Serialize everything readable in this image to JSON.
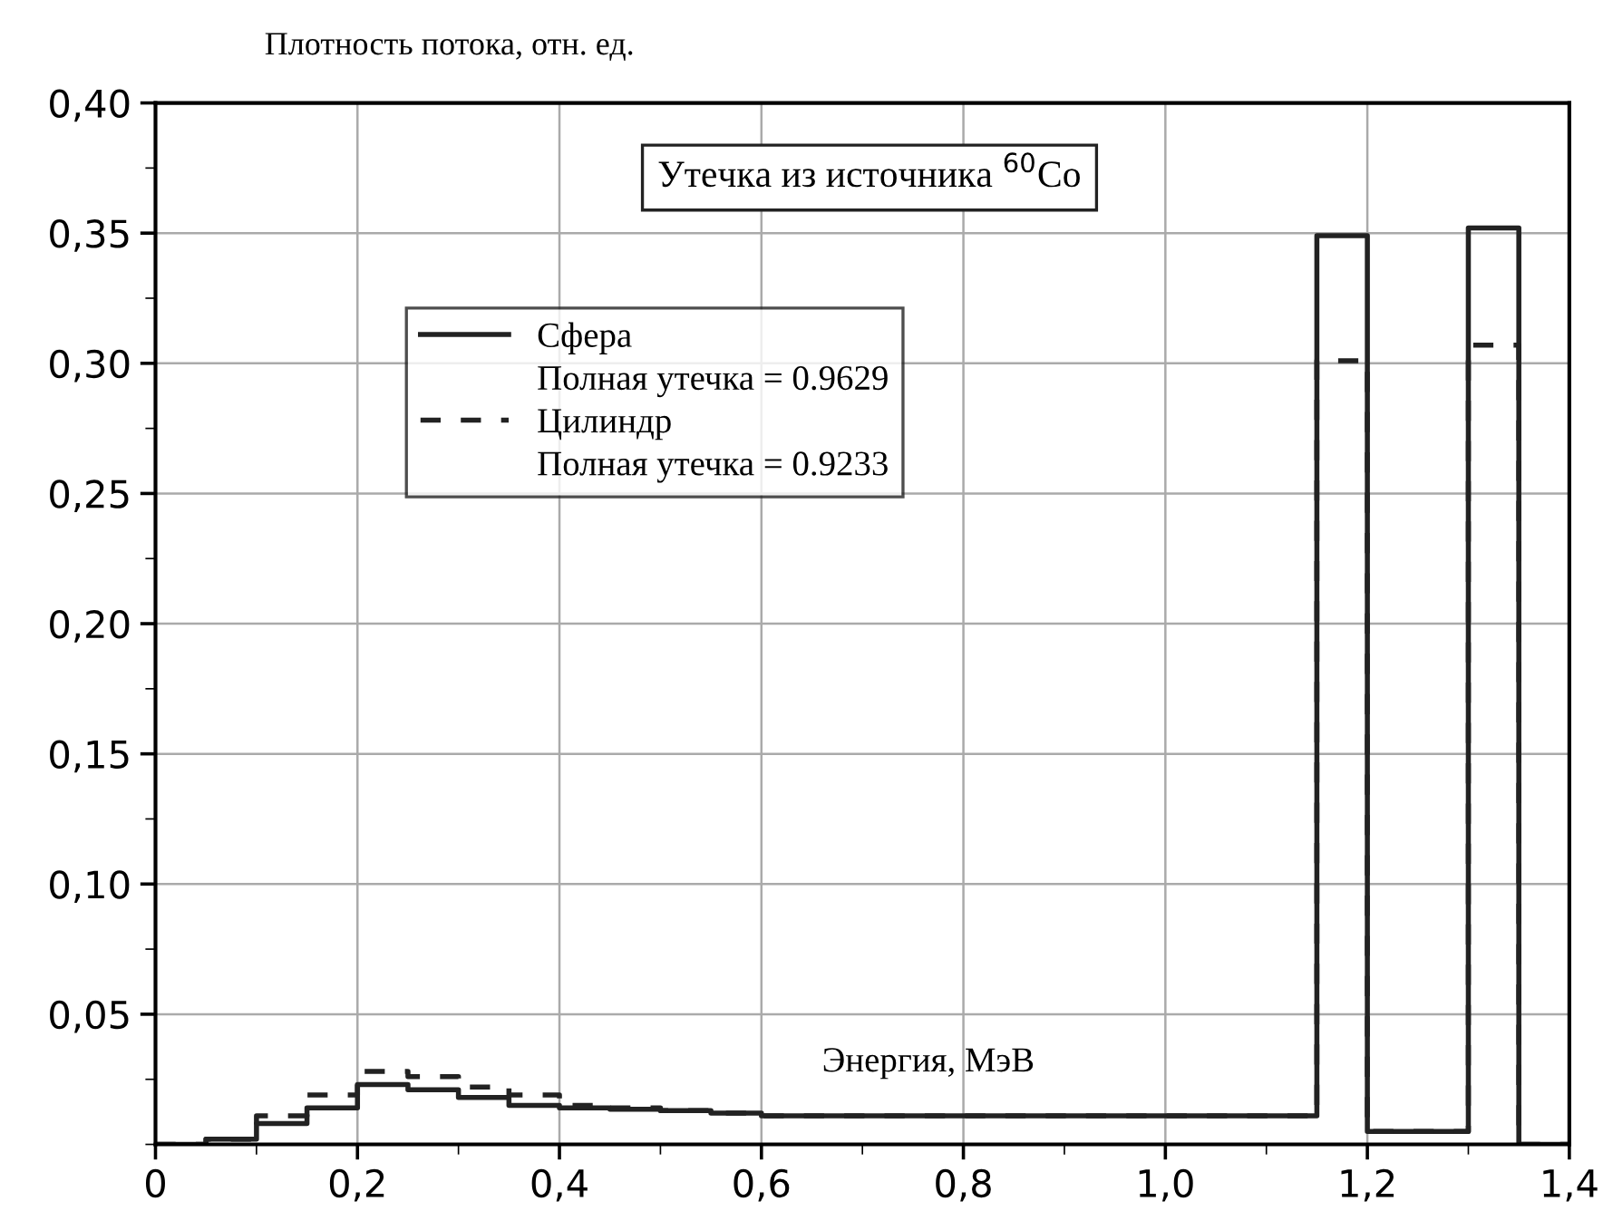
{
  "chart_data": {
    "type": "step",
    "ylabel": "Плотность потока, отн. ед.",
    "xlabel": "Энергия, МэВ",
    "annotations": [
      "Утечка из источника $^{60}$Co",
      "Полная утечка = 0.9629",
      "Полная утечка = 0.9233"
    ],
    "x": [
      0,
      0.05,
      0.1,
      0.15,
      0.2,
      0.25,
      0.3,
      0.35,
      0.4,
      0.45,
      0.5,
      0.55,
      0.6,
      0.65,
      0.7,
      0.75,
      0.8,
      0.85,
      0.9,
      0.95,
      1.0,
      1.05,
      1.1,
      1.15,
      1.2,
      1.25,
      1.3,
      1.35,
      1.4
    ],
    "series": [
      {
        "name": "Сфера",
        "color": "#222222",
        "line_style": "solid",
        "values": [
          0,
          0.002,
          0.008,
          0.014,
          0.023,
          0.021,
          0.018,
          0.015,
          0.014,
          0.0135,
          0.013,
          0.012,
          0.011,
          0.011,
          0.011,
          0.011,
          0.011,
          0.011,
          0.011,
          0.011,
          0.011,
          0.011,
          0.011,
          0.349,
          0.005,
          0.005,
          0.352,
          0,
          0
        ]
      },
      {
        "name": "Цилиндр",
        "color": "#222222",
        "line_style": "dashed",
        "values": [
          0,
          0.002,
          0.011,
          0.019,
          0.028,
          0.026,
          0.022,
          0.019,
          0.015,
          0.014,
          0.013,
          0.012,
          0.011,
          0.011,
          0.011,
          0.011,
          0.011,
          0.011,
          0.011,
          0.011,
          0.011,
          0.011,
          0.011,
          0.301,
          0.005,
          0.005,
          0.307,
          0,
          0
        ]
      }
    ],
    "xlim": [
      0,
      1.4
    ],
    "ylim": [
      0,
      0.4
    ],
    "xticks": [
      0,
      {
        "value": 0.2,
        "label": "0,2"
      },
      {
        "value": 0.4,
        "label": "0,4"
      },
      {
        "value": 0.6,
        "label": "0,6"
      },
      {
        "value": 0.8,
        "label": "0,8"
      },
      {
        "value": 1.0,
        "label": "1,0"
      },
      {
        "value": 1.2,
        "label": "1,2"
      },
      {
        "value": 1.4,
        "label": "1,4"
      }
    ],
    "yticks": [
      {
        "value": 0.05,
        "label": "0,05"
      },
      {
        "value": 0.1,
        "label": "0,10"
      },
      {
        "value": 0.15,
        "label": "0,15"
      },
      {
        "value": 0.2,
        "label": "0,20"
      },
      {
        "value": 0.25,
        "label": "0,25"
      },
      {
        "value": 0.3,
        "label": "0,30"
      },
      {
        "value": 0.35,
        "label": "0,35"
      },
      {
        "value": 0.4,
        "label": "0,40"
      }
    ],
    "grid": true,
    "legend": "top left"
  }
}
